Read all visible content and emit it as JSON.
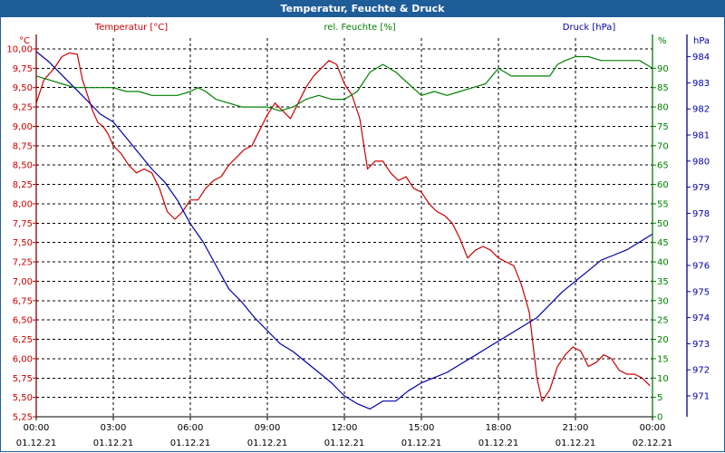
{
  "chart_data": {
    "type": "line",
    "title": "Temperatur, Feuchte & Druck",
    "x_labels": [
      {
        "time": "00:00",
        "date": "01.12.21"
      },
      {
        "time": "03:00",
        "date": "01.12.21"
      },
      {
        "time": "06:00",
        "date": "01.12.21"
      },
      {
        "time": "09:00",
        "date": "01.12.21"
      },
      {
        "time": "12:00",
        "date": "01.12.21"
      },
      {
        "time": "15:00",
        "date": "01.12.21"
      },
      {
        "time": "18:00",
        "date": "01.12.21"
      },
      {
        "time": "21:00",
        "date": "01.12.21"
      },
      {
        "time": "00:00",
        "date": "02.12.21"
      }
    ],
    "xlim_hours": [
      0,
      24
    ],
    "grid": true,
    "axes": {
      "temperature": {
        "label": "Temperatur [°C]",
        "unit": "°C",
        "ylim": [
          5.25,
          10.0
        ],
        "color": "#cc0000",
        "ticks": [
          "10,00",
          "9,75",
          "9,50",
          "9,25",
          "9,00",
          "8,75",
          "8,50",
          "8,25",
          "8,00",
          "7,75",
          "7,50",
          "7,25",
          "7,00",
          "6,75",
          "6,50",
          "6,25",
          "6,00",
          "5,75",
          "5,50",
          "5,25"
        ]
      },
      "humidity": {
        "label": "rel. Feuchte [%]",
        "unit": "%",
        "ylim": [
          0,
          95
        ],
        "color": "#008000",
        "ticks": [
          "90",
          "85",
          "80",
          "75",
          "70",
          "65",
          "60",
          "55",
          "50",
          "45",
          "40",
          "35",
          "30",
          "25",
          "20",
          "15",
          "10",
          "5",
          "0"
        ]
      },
      "pressure": {
        "label": "Druck [hPa]",
        "unit": "hPa",
        "ylim": [
          970.2,
          984.3
        ],
        "color": "#0000aa",
        "ticks": [
          "984",
          "983",
          "982",
          "981",
          "980",
          "979",
          "978",
          "977",
          "976",
          "975",
          "974",
          "973",
          "972",
          "971"
        ]
      }
    },
    "series": [
      {
        "name": "Temperatur [°C]",
        "axis": "temperature",
        "color": "#cc0000",
        "x": [
          0,
          0.3,
          0.7,
          1.0,
          1.3,
          1.6,
          1.8,
          2.0,
          2.2,
          2.4,
          2.6,
          2.8,
          3.0,
          3.3,
          3.6,
          3.9,
          4.2,
          4.5,
          4.8,
          5.1,
          5.4,
          5.7,
          6.0,
          6.3,
          6.6,
          6.9,
          7.2,
          7.5,
          7.8,
          8.1,
          8.4,
          8.7,
          9.0,
          9.3,
          9.6,
          9.9,
          10.2,
          10.5,
          10.8,
          11.1,
          11.4,
          11.7,
          12.0,
          12.3,
          12.6,
          12.9,
          13.2,
          13.5,
          13.8,
          14.1,
          14.4,
          14.7,
          15.0,
          15.3,
          15.6,
          15.9,
          16.2,
          16.5,
          16.8,
          17.1,
          17.4,
          17.7,
          18.0,
          18.3,
          18.6,
          18.9,
          19.2,
          19.5,
          19.7,
          20.0,
          20.3,
          20.6,
          20.9,
          21.2,
          21.5,
          21.8,
          22.1,
          22.4,
          22.7,
          23.0,
          23.3,
          23.6,
          23.9
        ],
        "values": [
          9.3,
          9.6,
          9.75,
          9.9,
          9.95,
          9.93,
          9.6,
          9.4,
          9.2,
          9.05,
          9.0,
          8.9,
          8.75,
          8.65,
          8.5,
          8.4,
          8.45,
          8.4,
          8.2,
          7.9,
          7.8,
          7.9,
          8.05,
          8.05,
          8.2,
          8.3,
          8.35,
          8.5,
          8.6,
          8.7,
          8.75,
          8.95,
          9.15,
          9.3,
          9.2,
          9.1,
          9.3,
          9.5,
          9.65,
          9.75,
          9.85,
          9.8,
          9.55,
          9.4,
          9.1,
          8.45,
          8.55,
          8.55,
          8.4,
          8.3,
          8.35,
          8.2,
          8.15,
          8.0,
          7.9,
          7.85,
          7.75,
          7.55,
          7.3,
          7.4,
          7.45,
          7.4,
          7.3,
          7.25,
          7.2,
          6.95,
          6.6,
          5.75,
          5.45,
          5.6,
          5.9,
          6.05,
          6.15,
          6.1,
          5.9,
          5.95,
          6.05,
          6.0,
          5.85,
          5.8,
          5.8,
          5.75,
          5.65
        ]
      },
      {
        "name": "rel. Feuchte [%]",
        "axis": "humidity",
        "color": "#008000",
        "x": [
          0,
          0.5,
          1.0,
          1.5,
          2.0,
          2.5,
          3.0,
          3.5,
          4.0,
          4.5,
          5.0,
          5.5,
          6.0,
          6.3,
          6.6,
          7.0,
          7.5,
          8.0,
          8.5,
          9.0,
          9.5,
          10.0,
          10.5,
          11.0,
          11.5,
          12.0,
          12.5,
          13.0,
          13.5,
          14.0,
          14.5,
          15.0,
          15.5,
          16.0,
          16.5,
          17.0,
          17.5,
          18.0,
          18.5,
          19.0,
          19.5,
          20.0,
          20.3,
          20.6,
          21.0,
          21.5,
          22.0,
          22.5,
          23.0,
          23.5,
          24.0
        ],
        "values": [
          88,
          87,
          86,
          85,
          85,
          85,
          85,
          84,
          84,
          83,
          83,
          83,
          84,
          85,
          84,
          82,
          81,
          80,
          80,
          80,
          79,
          80,
          82,
          83,
          82,
          82,
          84,
          89,
          91,
          89,
          86,
          83,
          84,
          83,
          84,
          85,
          86,
          90,
          88,
          88,
          88,
          88,
          91,
          92,
          93,
          93,
          92,
          92,
          92,
          92,
          90
        ]
      },
      {
        "name": "Druck [hPa]",
        "axis": "pressure",
        "color": "#0000aa",
        "x": [
          0,
          0.5,
          1.0,
          1.5,
          2.0,
          2.5,
          3.0,
          3.5,
          4.0,
          4.5,
          5.0,
          5.5,
          6.0,
          6.5,
          7.0,
          7.5,
          8.0,
          8.5,
          9.0,
          9.5,
          10.0,
          10.5,
          11.0,
          11.5,
          12.0,
          12.5,
          13.0,
          13.5,
          14.0,
          14.5,
          15.0,
          15.5,
          16.0,
          16.5,
          17.0,
          17.5,
          18.0,
          18.5,
          19.0,
          19.5,
          20.0,
          20.5,
          21.0,
          21.5,
          22.0,
          22.5,
          23.0,
          23.5,
          24.0
        ],
        "values": [
          984.2,
          983.8,
          983.3,
          982.8,
          982.3,
          981.8,
          981.5,
          980.9,
          980.3,
          979.7,
          979.2,
          978.5,
          977.6,
          976.9,
          976.0,
          975.1,
          974.6,
          974.0,
          973.5,
          973.0,
          972.7,
          972.3,
          971.9,
          971.5,
          971.0,
          970.7,
          970.5,
          970.8,
          970.8,
          971.2,
          971.5,
          971.7,
          971.9,
          972.2,
          972.5,
          972.8,
          973.1,
          973.4,
          973.7,
          974.0,
          974.5,
          975.0,
          975.4,
          975.8,
          976.2,
          976.4,
          976.6,
          976.9,
          977.2
        ]
      }
    ]
  }
}
